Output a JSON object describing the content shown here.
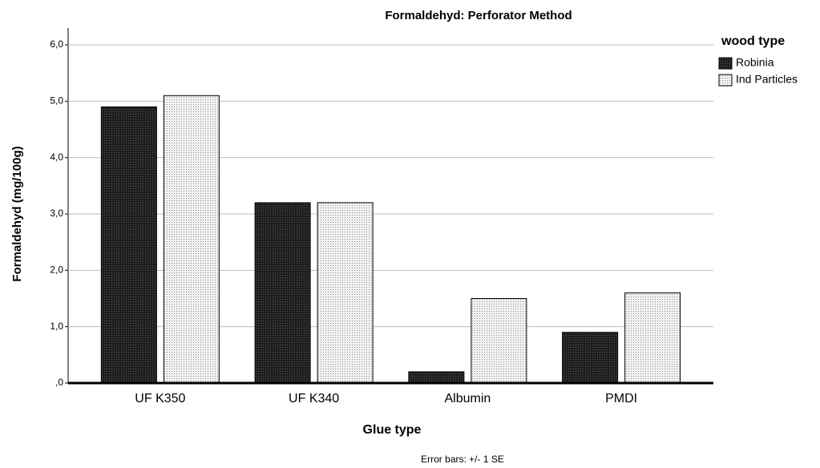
{
  "chart_data": {
    "type": "bar",
    "title": "Formaldehyd: Perforator Method",
    "x_label": "Glue type",
    "y_label": "Formaldehyd (mg/100g)",
    "footnote": "Error bars: +/- 1 SE",
    "legend_title": "wood type",
    "legend": "top-right",
    "categories": [
      "UF K350",
      "UF K340",
      "Albumin",
      "PMDI"
    ],
    "series": [
      {
        "name": "Robinia",
        "color": "#1e1e1e",
        "values": [
          4.9,
          3.2,
          0.2,
          0.9
        ]
      },
      {
        "name": "Ind Particles",
        "color": "#f2f2f2",
        "values": [
          5.1,
          3.2,
          1.5,
          1.6
        ]
      }
    ],
    "ylim": [
      0,
      6
    ],
    "yticks": [
      {
        "value": 0,
        "label": ",0"
      },
      {
        "value": 1,
        "label": "1,0"
      },
      {
        "value": 2,
        "label": "2,0"
      },
      {
        "value": 3,
        "label": "3,0"
      },
      {
        "value": 4,
        "label": "4,0"
      },
      {
        "value": 5,
        "label": "5,0"
      },
      {
        "value": 6,
        "label": "6,0"
      }
    ],
    "grid": true
  }
}
